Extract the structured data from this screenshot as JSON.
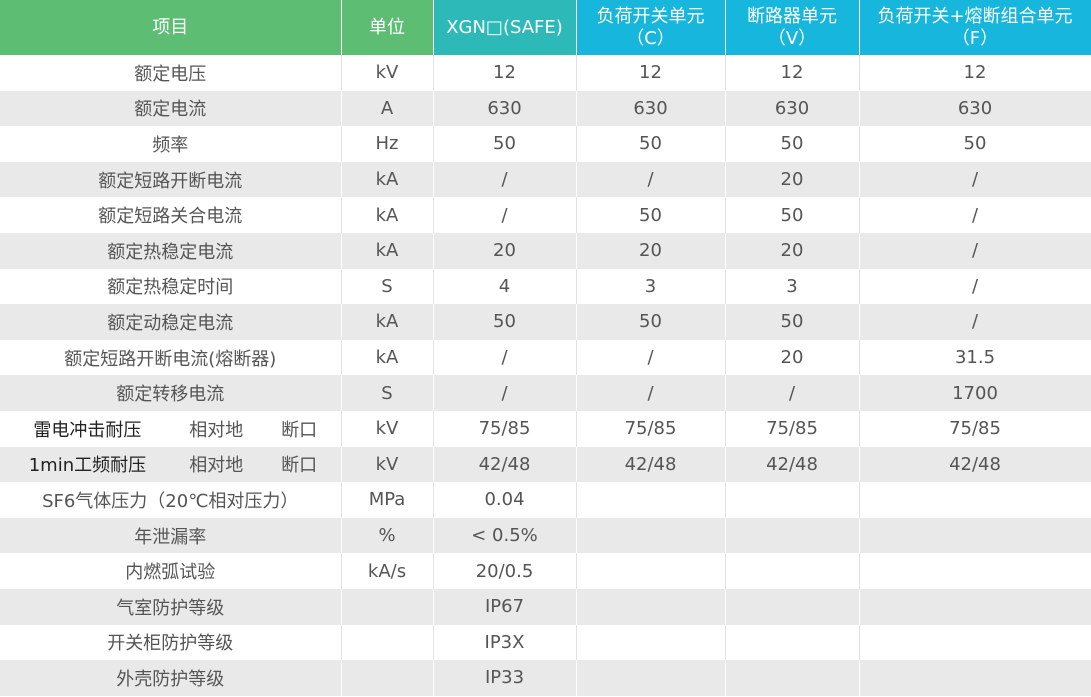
{
  "table": {
    "header": [
      {
        "lines": [
          "项目"
        ]
      },
      {
        "lines": [
          "单位"
        ]
      },
      {
        "lines": [
          "XGN□(SAFE)"
        ]
      },
      {
        "lines": [
          "负荷开关单元",
          "（C）"
        ]
      },
      {
        "lines": [
          "断路器单元",
          "（V）"
        ]
      },
      {
        "lines": [
          "负荷开关+熔断组合单元",
          "（F）"
        ]
      }
    ],
    "rows": [
      {
        "item": "额定电压",
        "unit": "kV",
        "values": [
          "12",
          "12",
          "12",
          "12"
        ]
      },
      {
        "item": "额定电流",
        "unit": "A",
        "values": [
          "630",
          "630",
          "630",
          "630"
        ]
      },
      {
        "item": "频率",
        "unit": "Hz",
        "values": [
          "50",
          "50",
          "50",
          "50"
        ]
      },
      {
        "item": "额定短路开断电流",
        "unit": "kA",
        "values": [
          "/",
          "/",
          "20",
          "/"
        ]
      },
      {
        "item": "额定短路关合电流",
        "unit": "kA",
        "values": [
          "/",
          "50",
          "50",
          "/"
        ]
      },
      {
        "item": "额定热稳定电流",
        "unit": "kA",
        "values": [
          "20",
          "20",
          "20",
          "/"
        ]
      },
      {
        "item": "额定热稳定时间",
        "unit": "S",
        "values": [
          "4",
          "3",
          "3",
          "/"
        ]
      },
      {
        "item": "额定动稳定电流",
        "unit": "kA",
        "values": [
          "50",
          "50",
          "50",
          "/"
        ]
      },
      {
        "item": "额定短路开断电流(熔断器)",
        "unit": "kA",
        "values": [
          "/",
          "/",
          "20",
          "31.5"
        ]
      },
      {
        "item": "额定转移电流",
        "unit": "S",
        "values": [
          "/",
          "/",
          "/",
          "1700"
        ]
      },
      {
        "item": "雷电冲击耐压",
        "sub": [
          "相对地",
          "断口"
        ],
        "unit": "kV",
        "values": [
          "75/85",
          "75/85",
          "75/85",
          "75/85"
        ]
      },
      {
        "item": "1min工频耐压",
        "sub": [
          "相对地",
          "断口"
        ],
        "unit": "kV",
        "values": [
          "42/48",
          "42/48",
          "42/48",
          "42/48"
        ]
      },
      {
        "item": "SF6气体压力（20℃相对压力）",
        "unit": "MPa",
        "values": [
          "0.04"
        ]
      },
      {
        "item": "年泄漏率",
        "unit": "%",
        "values": [
          "< 0.5%"
        ]
      },
      {
        "item": "内燃弧试验",
        "unit": "kA/s",
        "values": [
          "20/0.5"
        ]
      },
      {
        "item": "气室防护等级",
        "values": [
          "IP67"
        ]
      },
      {
        "item": "开关柜防护等级",
        "values": [
          "IP3X"
        ]
      },
      {
        "item": "外壳防护等级",
        "values": [
          "IP33"
        ]
      }
    ]
  }
}
